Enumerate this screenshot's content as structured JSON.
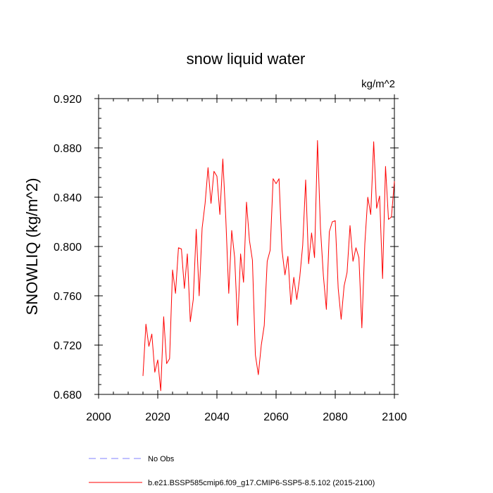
{
  "chart_data": {
    "type": "line",
    "title": "snow liquid water",
    "units": "kg/m^2",
    "ylabel": "SNOWLIQ  (kg/m^2)",
    "xlabel": "",
    "xlim": [
      2000,
      2100
    ],
    "ylim": [
      0.68,
      0.92
    ],
    "xticks": [
      2000,
      2020,
      2040,
      2060,
      2080,
      2100
    ],
    "yticks": [
      0.68,
      0.72,
      0.76,
      0.8,
      0.84,
      0.88,
      0.92
    ],
    "xtick_labels": [
      "2000",
      "2020",
      "2040",
      "2060",
      "2080",
      "2100"
    ],
    "ytick_labels": [
      "0.680",
      "0.720",
      "0.760",
      "0.800",
      "0.840",
      "0.880",
      "0.920"
    ],
    "grid": false,
    "legend": [
      {
        "label": "No Obs",
        "color": "#8080ff",
        "style": "dashed"
      },
      {
        "label": "b.e21.BSSP585cmip6.f09_g17.CMIP6-SSP5-8.5.102 (2015-2100)",
        "color": "#ff0000",
        "style": "solid"
      }
    ],
    "series": [
      {
        "name": "b.e21.BSSP585cmip6.f09_g17.CMIP6-SSP5-8.5.102 (2015-2100)",
        "color": "#ff0000",
        "x": [
          2015,
          2016,
          2017,
          2018,
          2019,
          2020,
          2021,
          2022,
          2023,
          2024,
          2025,
          2026,
          2027,
          2028,
          2029,
          2030,
          2031,
          2032,
          2033,
          2034,
          2035,
          2036,
          2037,
          2038,
          2039,
          2040,
          2041,
          2042,
          2043,
          2044,
          2045,
          2046,
          2047,
          2048,
          2049,
          2050,
          2051,
          2052,
          2053,
          2054,
          2055,
          2056,
          2057,
          2058,
          2059,
          2060,
          2061,
          2062,
          2063,
          2064,
          2065,
          2066,
          2067,
          2068,
          2069,
          2070,
          2071,
          2072,
          2073,
          2074,
          2075,
          2076,
          2077,
          2078,
          2079,
          2080,
          2081,
          2082,
          2083,
          2084,
          2085,
          2086,
          2087,
          2088,
          2089,
          2090,
          2091,
          2092,
          2093,
          2094,
          2095,
          2096,
          2097,
          2098,
          2099,
          2100
        ],
        "values": [
          0.695,
          0.737,
          0.719,
          0.729,
          0.698,
          0.708,
          0.683,
          0.743,
          0.705,
          0.709,
          0.781,
          0.762,
          0.799,
          0.798,
          0.766,
          0.794,
          0.739,
          0.757,
          0.814,
          0.76,
          0.815,
          0.835,
          0.864,
          0.835,
          0.861,
          0.857,
          0.826,
          0.871,
          0.823,
          0.762,
          0.813,
          0.791,
          0.736,
          0.794,
          0.771,
          0.836,
          0.805,
          0.789,
          0.712,
          0.696,
          0.72,
          0.736,
          0.788,
          0.797,
          0.855,
          0.851,
          0.855,
          0.797,
          0.777,
          0.792,
          0.753,
          0.775,
          0.757,
          0.775,
          0.801,
          0.854,
          0.786,
          0.811,
          0.791,
          0.886,
          0.815,
          0.776,
          0.749,
          0.812,
          0.82,
          0.821,
          0.766,
          0.741,
          0.768,
          0.779,
          0.817,
          0.788,
          0.799,
          0.791,
          0.734,
          0.802,
          0.84,
          0.826,
          0.885,
          0.831,
          0.841,
          0.774,
          0.865,
          0.822,
          0.824,
          0.853
        ]
      }
    ]
  }
}
